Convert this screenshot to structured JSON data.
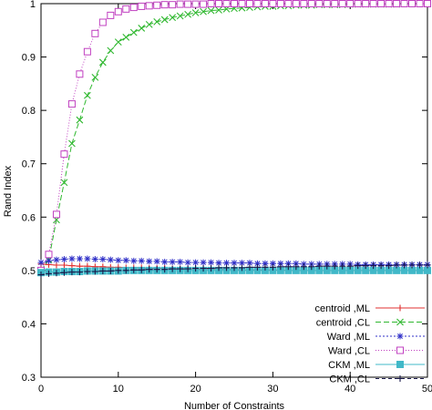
{
  "chart_data": {
    "type": "line",
    "title": "",
    "xlabel": "Number of Constraints",
    "ylabel": "Rand Index",
    "xlim": [
      0,
      50
    ],
    "ylim": [
      0.3,
      1.0
    ],
    "xticks": [
      0,
      10,
      20,
      30,
      40,
      50
    ],
    "yticks": [
      0.3,
      0.4,
      0.5,
      0.6,
      0.7,
      0.8,
      0.9,
      1
    ],
    "grid": false,
    "legend_position": "bottom-right",
    "x": [
      0,
      1,
      2,
      3,
      4,
      5,
      6,
      7,
      8,
      9,
      10,
      11,
      12,
      13,
      14,
      15,
      16,
      17,
      18,
      19,
      20,
      21,
      22,
      23,
      24,
      25,
      26,
      27,
      28,
      29,
      30,
      31,
      32,
      33,
      34,
      35,
      36,
      37,
      38,
      39,
      40,
      41,
      42,
      43,
      44,
      45,
      46,
      47,
      48,
      49,
      50
    ],
    "series": [
      {
        "name": "centroid ,ML",
        "color": "#e03030",
        "marker": "plus",
        "dash": "",
        "values": [
          0.512,
          0.511,
          0.51,
          0.51,
          0.509,
          0.508,
          0.508,
          0.507,
          0.507,
          0.506,
          0.506,
          0.505,
          0.505,
          0.505,
          0.504,
          0.504,
          0.504,
          0.503,
          0.503,
          0.503,
          0.503,
          0.502,
          0.502,
          0.502,
          0.502,
          0.502,
          0.501,
          0.501,
          0.501,
          0.501,
          0.501,
          0.501,
          0.5,
          0.5,
          0.5,
          0.5,
          0.5,
          0.5,
          0.5,
          0.5,
          0.5,
          0.5,
          0.5,
          0.5,
          0.5,
          0.5,
          0.5,
          0.5,
          0.5,
          0.5,
          0.5
        ]
      },
      {
        "name": "centroid ,CL",
        "color": "#30b830",
        "marker": "x",
        "dash": "6,3",
        "values": [
          0.5,
          0.52,
          0.595,
          0.665,
          0.738,
          0.782,
          0.828,
          0.862,
          0.89,
          0.912,
          0.928,
          0.937,
          0.946,
          0.954,
          0.961,
          0.966,
          0.97,
          0.974,
          0.977,
          0.98,
          0.983,
          0.985,
          0.987,
          0.988,
          0.99,
          0.991,
          0.992,
          0.993,
          0.994,
          0.995,
          0.995,
          0.996,
          0.996,
          0.997,
          0.997,
          0.997,
          0.998,
          0.998,
          0.998,
          0.998,
          0.999,
          0.999,
          0.999,
          0.999,
          0.999,
          0.999,
          0.999,
          1.0,
          1.0,
          1.0,
          1.0
        ]
      },
      {
        "name": "Ward ,ML",
        "color": "#3030c8",
        "marker": "star",
        "dash": "2,2",
        "values": [
          0.515,
          0.518,
          0.52,
          0.521,
          0.522,
          0.522,
          0.522,
          0.521,
          0.521,
          0.52,
          0.519,
          0.519,
          0.518,
          0.518,
          0.517,
          0.517,
          0.516,
          0.516,
          0.516,
          0.515,
          0.515,
          0.515,
          0.515,
          0.514,
          0.514,
          0.514,
          0.514,
          0.514,
          0.513,
          0.513,
          0.513,
          0.513,
          0.513,
          0.513,
          0.512,
          0.512,
          0.512,
          0.512,
          0.512,
          0.512,
          0.512,
          0.511,
          0.511,
          0.511,
          0.511,
          0.511,
          0.511,
          0.511,
          0.511,
          0.511,
          0.511
        ]
      },
      {
        "name": "Ward ,CL",
        "color": "#c040c0",
        "marker": "square-open",
        "dash": "1,2",
        "values": [
          0.5,
          0.53,
          0.605,
          0.718,
          0.812,
          0.868,
          0.91,
          0.944,
          0.965,
          0.978,
          0.985,
          0.99,
          0.993,
          0.995,
          0.996,
          0.997,
          0.998,
          0.998,
          0.999,
          0.999,
          0.999,
          0.999,
          1.0,
          1.0,
          1.0,
          1.0,
          1.0,
          1.0,
          1.0,
          1.0,
          1.0,
          1.0,
          1.0,
          1.0,
          1.0,
          1.0,
          1.0,
          1.0,
          1.0,
          1.0,
          1.0,
          1.0,
          1.0,
          1.0,
          1.0,
          1.0,
          1.0,
          1.0,
          1.0,
          1.0,
          1.0
        ]
      },
      {
        "name": "CKM ,ML",
        "color": "#40b8c8",
        "marker": "square-filled",
        "dash": "",
        "values": [
          0.496,
          0.497,
          0.497,
          0.498,
          0.498,
          0.498,
          0.499,
          0.499,
          0.499,
          0.499,
          0.499,
          0.5,
          0.5,
          0.5,
          0.5,
          0.5,
          0.5,
          0.5,
          0.5,
          0.5,
          0.5,
          0.5,
          0.5,
          0.5,
          0.5,
          0.5,
          0.5,
          0.5,
          0.5,
          0.5,
          0.5,
          0.5,
          0.5,
          0.5,
          0.5,
          0.5,
          0.5,
          0.5,
          0.5,
          0.5,
          0.5,
          0.5,
          0.5,
          0.5,
          0.5,
          0.5,
          0.5,
          0.5,
          0.5,
          0.5,
          0.5
        ]
      },
      {
        "name": "CKM ,CL",
        "color": "#1a1a4a",
        "marker": "cross-dark",
        "dash": "4,3",
        "values": [
          0.492,
          0.494,
          0.495,
          0.496,
          0.497,
          0.497,
          0.498,
          0.498,
          0.499,
          0.499,
          0.5,
          0.5,
          0.501,
          0.501,
          0.502,
          0.502,
          0.502,
          0.503,
          0.503,
          0.503,
          0.504,
          0.504,
          0.504,
          0.505,
          0.505,
          0.505,
          0.505,
          0.506,
          0.506,
          0.506,
          0.506,
          0.507,
          0.507,
          0.507,
          0.507,
          0.507,
          0.508,
          0.508,
          0.508,
          0.508,
          0.508,
          0.509,
          0.509,
          0.509,
          0.509,
          0.509,
          0.51,
          0.51,
          0.51,
          0.51,
          0.51
        ]
      }
    ]
  }
}
